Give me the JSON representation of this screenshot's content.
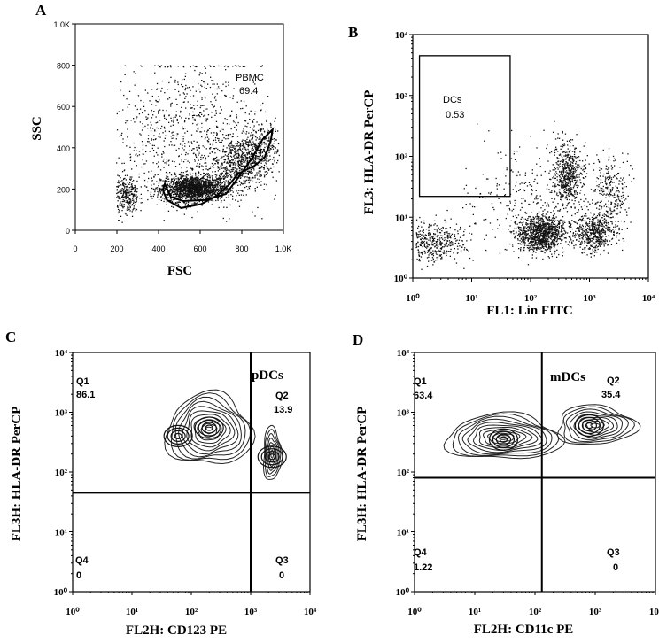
{
  "chart_data": [
    {
      "panel": "A",
      "type": "scatter",
      "xlabel": "FSC",
      "ylabel": "SSC",
      "xticks": [
        "0",
        "200",
        "400",
        "600",
        "800",
        "1.0K"
      ],
      "yticks": [
        "0",
        "200",
        "400",
        "600",
        "800",
        "1.0K"
      ],
      "xlim": [
        0,
        1023
      ],
      "ylim": [
        0,
        1023
      ],
      "gates": [
        {
          "name": "PBMC",
          "value": "69.4"
        }
      ],
      "clusters": [
        {
          "x": 580,
          "y": 210,
          "sx": 80,
          "sy": 32,
          "n": 1700
        },
        {
          "x": 800,
          "y": 330,
          "sx": 80,
          "sy": 60,
          "n": 600
        },
        {
          "x": 900,
          "y": 430,
          "sx": 55,
          "sy": 50,
          "n": 300
        },
        {
          "x": 250,
          "y": 170,
          "sx": 30,
          "sy": 50,
          "n": 300
        },
        {
          "x": 550,
          "y": 480,
          "sx": 190,
          "sy": 200,
          "n": 850
        }
      ],
      "gate_polygon": [
        [
          440,
          230
        ],
        [
          470,
          165
        ],
        [
          530,
          145
        ],
        [
          640,
          150
        ],
        [
          740,
          180
        ],
        [
          800,
          260
        ],
        [
          870,
          360
        ],
        [
          920,
          450
        ],
        [
          970,
          500
        ],
        [
          960,
          440
        ],
        [
          930,
          360
        ],
        [
          880,
          320
        ],
        [
          800,
          280
        ],
        [
          760,
          230
        ],
        [
          700,
          175
        ],
        [
          620,
          130
        ],
        [
          520,
          110
        ],
        [
          450,
          150
        ],
        [
          430,
          200
        ]
      ]
    },
    {
      "panel": "B",
      "type": "scatter",
      "xscale": "log",
      "yscale": "log",
      "xlabel": "FL1: Lin FITC",
      "ylabel": "FL3: HLA-DR PerCP",
      "xticks": [
        "10⁰",
        "10¹",
        "10²",
        "10³",
        "10⁴"
      ],
      "yticks": [
        "10⁰",
        "10¹",
        "10²",
        "10³",
        "10⁴"
      ],
      "xlim": [
        1,
        10000
      ],
      "ylim": [
        1,
        10000
      ],
      "gates": [
        {
          "name": "DCs",
          "value": "0.53",
          "x": [
            1.3,
            45
          ],
          "y": [
            22,
            4500
          ]
        }
      ],
      "clusters": [
        {
          "x": 2.0,
          "y": 4.0,
          "sx": 0.3,
          "sy": 0.15,
          "n": 500
        },
        {
          "x": 150,
          "y": 5.5,
          "sx": 0.2,
          "sy": 0.15,
          "n": 1100
        },
        {
          "x": 420,
          "y": 50,
          "sx": 0.12,
          "sy": 0.25,
          "n": 550
        },
        {
          "x": 1200,
          "y": 5.5,
          "sx": 0.17,
          "sy": 0.15,
          "n": 500
        },
        {
          "x": 2200,
          "y": 25,
          "sx": 0.15,
          "sy": 0.3,
          "n": 300
        },
        {
          "x": 80,
          "y": 20,
          "sx": 0.5,
          "sy": 0.45,
          "n": 250
        }
      ]
    },
    {
      "panel": "C",
      "type": "contour",
      "xscale": "log",
      "yscale": "log",
      "xlabel": "FL2H: CD123 PE",
      "ylabel": "FL3H: HLA-DR PerCP",
      "xticks": [
        "10⁰",
        "10¹",
        "10²",
        "10³",
        "10⁴"
      ],
      "yticks": [
        "10⁰",
        "10¹",
        "10²",
        "10³",
        "10⁴"
      ],
      "xlim": [
        1,
        10000
      ],
      "ylim": [
        1,
        10000
      ],
      "quadrant_divider": {
        "x": 1000,
        "y": 45
      },
      "population_label": "pDCs",
      "quadrants": [
        {
          "name": "Q1",
          "value": "86.1"
        },
        {
          "name": "Q2",
          "value": "13.9"
        },
        {
          "name": "Q3",
          "value": "0"
        },
        {
          "name": "Q4",
          "value": "0"
        }
      ],
      "populations": [
        {
          "x": 200,
          "y": 500,
          "rx_dec": 0.72,
          "ry_dec": 0.6,
          "rings": 11,
          "peaks": [
            [
              60,
              400
            ],
            [
              200,
              550
            ]
          ]
        },
        {
          "x": 2300,
          "y": 200,
          "rx_dec": 0.15,
          "ry_dec": 0.45,
          "rings": 7,
          "peaks": [
            [
              2300,
              180
            ]
          ]
        }
      ]
    },
    {
      "panel": "D",
      "type": "contour",
      "xscale": "log",
      "yscale": "log",
      "xlabel": "FL2H: CD11c PE",
      "ylabel": "FL3H: HLA-DR PerCP",
      "xticks": [
        "10⁰",
        "10¹",
        "10²",
        "10³",
        "10⁴"
      ],
      "yticks": [
        "10⁰",
        "10¹",
        "10²",
        "10³",
        "10⁴"
      ],
      "xlim": [
        1,
        10000
      ],
      "ylim": [
        1,
        10000
      ],
      "quadrant_divider": {
        "x": 130,
        "y": 80
      },
      "population_label": "mDCs",
      "quadrants": [
        {
          "name": "Q1",
          "value": "63.4"
        },
        {
          "name": "Q2",
          "value": "35.4"
        },
        {
          "name": "Q3",
          "value": "0"
        },
        {
          "name": "Q4",
          "value": "1.22"
        }
      ],
      "populations": [
        {
          "x": 30,
          "y": 380,
          "rx_dec": 0.95,
          "ry_dec": 0.38,
          "rings": 11,
          "peaks": [
            [
              30,
              350
            ]
          ]
        },
        {
          "x": 1000,
          "y": 600,
          "rx_dec": 0.65,
          "ry_dec": 0.33,
          "rings": 9,
          "peaks": [
            [
              800,
              600
            ]
          ]
        }
      ]
    }
  ]
}
